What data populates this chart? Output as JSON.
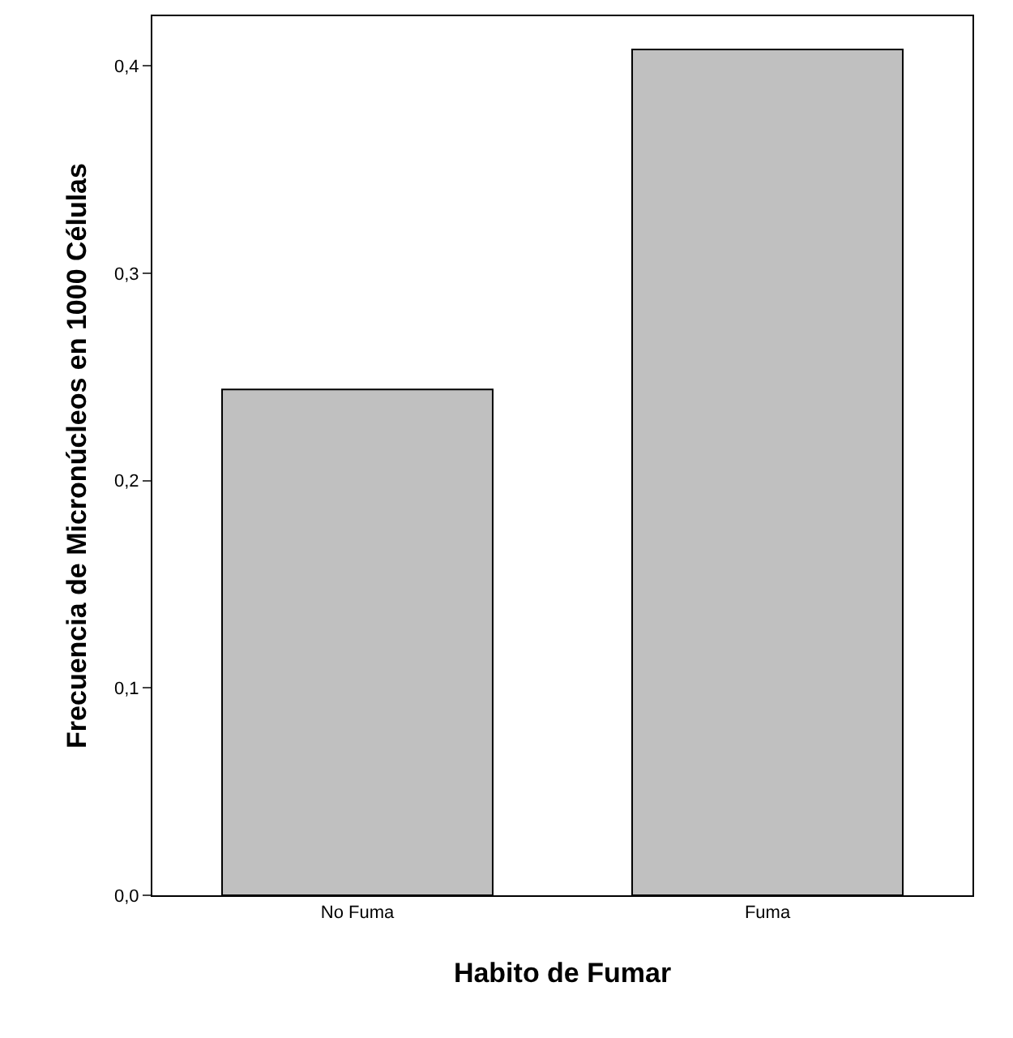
{
  "chart_data": {
    "type": "bar",
    "xlabel": "Habito de Fumar",
    "ylabel": "Frecuencia de Micronúcleos en 1000 Células",
    "categories": [
      "No Fuma",
      "Fuma"
    ],
    "values": [
      0.244,
      0.408
    ],
    "color": "#c0c0c0",
    "ylim": [
      0,
      0.424
    ],
    "yticks": [
      {
        "value": 0,
        "label": "0,0"
      },
      {
        "value": 0.1,
        "label": "0,1"
      },
      {
        "value": 0.2,
        "label": "0,2"
      },
      {
        "value": 0.3,
        "label": "0,3"
      },
      {
        "value": 0.4,
        "label": "0,4"
      }
    ]
  }
}
